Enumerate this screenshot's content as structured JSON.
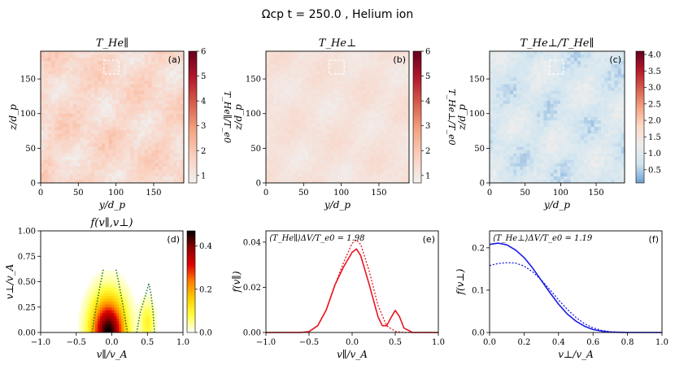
{
  "figure": {
    "suptitle": "Ωcp t = 250.0 , Helium ion"
  },
  "colors": {
    "cmap_reds": [
      "#f0f0f0",
      "#fbd0bf",
      "#f4a582",
      "#d6604d",
      "#b2182b",
      "#67001f"
    ],
    "cmap_rdbu": [
      "#6f9fd6",
      "#d1e5f0",
      "#ededed",
      "#fddbc7",
      "#f4a582",
      "#d6604d",
      "#b2182b",
      "#67001f"
    ],
    "cmap_hot": [
      "#ffffff",
      "#ffff40",
      "#ffd000",
      "#ff8000",
      "#e00000",
      "#900000",
      "#000000"
    ],
    "red_line": "#e8141e",
    "blue_line": "#1a1ae6",
    "green_dot": "#1f7a3a"
  },
  "chart_data": [
    {
      "id": "a",
      "type": "heatmap",
      "title": "T_He∥",
      "panel_label": "(a)",
      "xlabel": "y/d_p",
      "ylabel": "z/d_p",
      "xlim": [
        0,
        190
      ],
      "ylim": [
        0,
        190
      ],
      "xticks": [
        "0",
        "50",
        "100",
        "150"
      ],
      "yticks": [
        "0",
        "50",
        "100",
        "150"
      ],
      "colorbar": {
        "label": "T_He∥/T_e0",
        "range": [
          0.7,
          6
        ],
        "ticks": [
          "1",
          "2",
          "3",
          "4",
          "5",
          "6"
        ],
        "cmap": "reds"
      },
      "box": {
        "y": [
          84,
          104
        ],
        "z": [
          157,
          177
        ]
      },
      "values_mean": 1.98
    },
    {
      "id": "b",
      "type": "heatmap",
      "title": "T_He⊥",
      "panel_label": "(b)",
      "xlabel": "y/d_p",
      "ylabel": "z/d_p",
      "xlim": [
        0,
        190
      ],
      "ylim": [
        0,
        190
      ],
      "xticks": [
        "0",
        "50",
        "100",
        "150"
      ],
      "yticks": [
        "0",
        "50",
        "100",
        "150"
      ],
      "colorbar": {
        "label": "T_He⊥/T_e0",
        "range": [
          0.7,
          6
        ],
        "ticks": [
          "1",
          "2",
          "3",
          "4",
          "5",
          "6"
        ],
        "cmap": "reds"
      },
      "box": {
        "y": [
          84,
          104
        ],
        "z": [
          157,
          177
        ]
      },
      "values_mean": 1.19
    },
    {
      "id": "c",
      "type": "heatmap",
      "title": "T_He⊥/T_He∥",
      "panel_label": "(c)",
      "xlabel": "y/d_p",
      "ylabel": "z/d_p",
      "xlim": [
        0,
        190
      ],
      "ylim": [
        0,
        190
      ],
      "xticks": [
        "0",
        "50",
        "100",
        "150"
      ],
      "yticks": [
        "0",
        "50",
        "100",
        "150"
      ],
      "colorbar": {
        "label": "",
        "range": [
          0.1,
          4.1
        ],
        "ticks": [
          "0.5",
          "1.0",
          "1.5",
          "2.0",
          "2.5",
          "3.0",
          "3.5",
          "4.0"
        ],
        "cmap": "rdbu"
      },
      "box": {
        "y": [
          84,
          104
        ],
        "z": [
          157,
          177
        ]
      }
    },
    {
      "id": "d",
      "type": "heatmap",
      "title": "f(v∥,v⊥)",
      "panel_label": "(d)",
      "xlabel": "v∥/v_A",
      "ylabel": "v⊥/v_A",
      "xlim": [
        -1.0,
        1.0
      ],
      "ylim": [
        0.0,
        1.0
      ],
      "xticks": [
        "−1.0",
        "−0.5",
        "0.0",
        "0.5",
        "1.0"
      ],
      "yticks": [
        "0.00",
        "0.25",
        "0.50",
        "0.75",
        "1.00"
      ],
      "colorbar": {
        "label": "",
        "range": [
          0,
          0.47
        ],
        "ticks": [
          "0.0",
          "0.2",
          "0.4"
        ],
        "cmap": "hot"
      },
      "core": {
        "center": [
          -0.05,
          0.0
        ],
        "sigma_par": 0.14,
        "sigma_perp": 0.2,
        "peak": 0.47
      },
      "beam": {
        "center": [
          0.5,
          0.1
        ],
        "sigma_par": 0.06,
        "sigma_perp": 0.12,
        "peak": 0.06
      },
      "dotted_curves": [
        {
          "x": [
            -0.28,
            -0.22,
            -0.16,
            -0.12
          ],
          "y": [
            0.0,
            0.25,
            0.48,
            0.62
          ]
        },
        {
          "x": [
            0.22,
            0.16,
            0.1,
            0.06
          ],
          "y": [
            0.0,
            0.25,
            0.48,
            0.62
          ]
        },
        {
          "x": [
            0.35,
            0.4,
            0.48,
            0.52
          ],
          "y": [
            0.0,
            0.2,
            0.38,
            0.48
          ]
        },
        {
          "x": [
            0.6,
            0.58,
            0.55,
            0.52
          ],
          "y": [
            0.0,
            0.2,
            0.38,
            0.48
          ]
        }
      ]
    },
    {
      "id": "e",
      "type": "line",
      "title": "",
      "panel_label": "(e)",
      "annotation": "⟨T_He∥⟩ΔV/T_e0 = 1.98",
      "xlabel": "v∥/v_A",
      "ylabel": "f(v∥)",
      "xlim": [
        -1.0,
        1.0
      ],
      "ylim": [
        0.0,
        0.045
      ],
      "xticks": [
        "−1.0",
        "−0.5",
        "0.0",
        "0.5",
        "1.0"
      ],
      "yticks": [
        "0.00",
        "0.02",
        "0.04"
      ],
      "series": [
        {
          "style": "solid",
          "x": [
            -1.0,
            -0.6,
            -0.5,
            -0.4,
            -0.3,
            -0.2,
            -0.1,
            0.0,
            0.05,
            0.1,
            0.2,
            0.3,
            0.35,
            0.4,
            0.45,
            0.5,
            0.55,
            0.6,
            0.7,
            1.0
          ],
          "y": [
            0.0,
            0.0,
            0.0004,
            0.003,
            0.01,
            0.021,
            0.029,
            0.0355,
            0.037,
            0.034,
            0.021,
            0.007,
            0.003,
            0.003,
            0.0065,
            0.0098,
            0.007,
            0.002,
            0.0,
            0.0
          ]
        },
        {
          "style": "dotted",
          "x": [
            -1.0,
            -0.6,
            -0.5,
            -0.4,
            -0.3,
            -0.2,
            -0.1,
            0.0,
            0.05,
            0.1,
            0.2,
            0.3,
            0.4,
            0.5,
            0.6,
            1.0
          ],
          "y": [
            0.0,
            0.0,
            0.0004,
            0.003,
            0.01,
            0.021,
            0.031,
            0.0395,
            0.041,
            0.039,
            0.027,
            0.012,
            0.003,
            0.0005,
            0.0,
            0.0
          ]
        }
      ]
    },
    {
      "id": "f",
      "type": "line",
      "title": "",
      "panel_label": "(f)",
      "annotation": "⟨T_He⊥⟩ΔV/T_e0 = 1.19",
      "xlabel": "v⊥/v_A",
      "ylabel": "f(v⊥)",
      "xlim": [
        0.0,
        1.0
      ],
      "ylim": [
        0.0,
        0.24
      ],
      "xticks": [
        "0.0",
        "0.2",
        "0.4",
        "0.6",
        "0.8",
        "1.0"
      ],
      "yticks": [
        "0.0",
        "0.1",
        "0.2"
      ],
      "series": [
        {
          "style": "solid",
          "x": [
            0.0,
            0.05,
            0.1,
            0.15,
            0.2,
            0.25,
            0.3,
            0.35,
            0.4,
            0.45,
            0.5,
            0.55,
            0.6,
            0.65,
            0.7,
            0.8,
            1.0
          ],
          "y": [
            0.208,
            0.211,
            0.207,
            0.195,
            0.177,
            0.152,
            0.123,
            0.094,
            0.067,
            0.044,
            0.027,
            0.015,
            0.007,
            0.003,
            0.001,
            0.0,
            0.0
          ]
        },
        {
          "style": "dotted",
          "x": [
            0.0,
            0.05,
            0.1,
            0.15,
            0.2,
            0.25,
            0.3,
            0.35,
            0.4,
            0.45,
            0.5,
            0.55,
            0.6,
            0.65,
            0.7,
            0.8,
            1.0
          ],
          "y": [
            0.158,
            0.163,
            0.165,
            0.164,
            0.157,
            0.143,
            0.124,
            0.101,
            0.077,
            0.055,
            0.036,
            0.021,
            0.011,
            0.005,
            0.002,
            0.0,
            0.0
          ]
        }
      ]
    }
  ]
}
